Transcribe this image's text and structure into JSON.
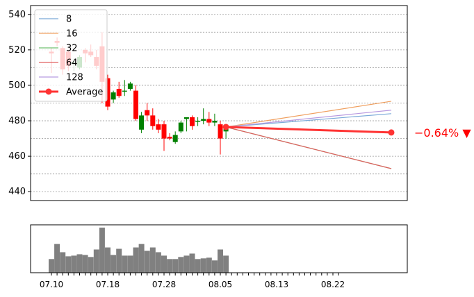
{
  "chart_data": {
    "type": "candlestick",
    "title": "",
    "grid": true,
    "legend_position": "top-left",
    "ylim": [
      435,
      545
    ],
    "yticks": [
      440,
      460,
      480,
      500,
      520,
      540
    ],
    "x_tick_labels": [
      "07.10",
      "07.18",
      "07.28",
      "08.05",
      "08.13",
      "08.22"
    ],
    "change_label": "−0.64% ▼",
    "colors": {
      "up": "#008000",
      "down": "#ff0000",
      "volume": "#808080",
      "average": "#ff3333"
    },
    "candles": [
      {
        "open": 519,
        "high": 521,
        "low": 507,
        "close": 518,
        "volume": 20
      },
      {
        "open": 525,
        "high": 527,
        "low": 522,
        "close": 524,
        "volume": 42
      },
      {
        "open": 521,
        "high": 522,
        "low": 506,
        "close": 509,
        "volume": 30
      },
      {
        "open": 519,
        "high": 520,
        "low": 508,
        "close": 511,
        "volume": 24
      },
      {
        "open": 512,
        "high": 515,
        "low": 508,
        "close": 513,
        "volume": 25
      },
      {
        "open": 510,
        "high": 517,
        "low": 509,
        "close": 516,
        "volume": 27
      },
      {
        "open": 520,
        "high": 521,
        "low": 513,
        "close": 518,
        "volume": 26
      },
      {
        "open": 519,
        "high": 523,
        "low": 516,
        "close": 517,
        "volume": 23
      },
      {
        "open": 516,
        "high": 520,
        "low": 509,
        "close": 511,
        "volume": 34
      },
      {
        "open": 522,
        "high": 530,
        "low": 490,
        "close": 502,
        "volume": 66
      },
      {
        "open": 504,
        "high": 506,
        "low": 486,
        "close": 488,
        "volume": 37
      },
      {
        "open": 492,
        "high": 497,
        "low": 490,
        "close": 496,
        "volume": 26
      },
      {
        "open": 498,
        "high": 502,
        "low": 493,
        "close": 494,
        "volume": 35
      },
      {
        "open": 497,
        "high": 503,
        "low": 494,
        "close": 497,
        "volume": 25
      },
      {
        "open": 498,
        "high": 502,
        "low": 497,
        "close": 501,
        "volume": 25
      },
      {
        "open": 497,
        "high": 500,
        "low": 480,
        "close": 481,
        "volume": 37
      },
      {
        "open": 475,
        "high": 485,
        "low": 473,
        "close": 483,
        "volume": 42
      },
      {
        "open": 486,
        "high": 490,
        "low": 480,
        "close": 483,
        "volume": 32
      },
      {
        "open": 483,
        "high": 487,
        "low": 475,
        "close": 477,
        "volume": 37
      },
      {
        "open": 478,
        "high": 481,
        "low": 473,
        "close": 475,
        "volume": 30
      },
      {
        "open": 478,
        "high": 480,
        "low": 463,
        "close": 470,
        "volume": 25
      },
      {
        "open": 471,
        "high": 473,
        "low": 469,
        "close": 470,
        "volume": 20
      },
      {
        "open": 468,
        "high": 474,
        "low": 467,
        "close": 472,
        "volume": 20
      },
      {
        "open": 474,
        "high": 480,
        "low": 473,
        "close": 479,
        "volume": 23
      },
      {
        "open": 481,
        "high": 482,
        "low": 474,
        "close": 482,
        "volume": 25
      },
      {
        "open": 482,
        "high": 483,
        "low": 475,
        "close": 477,
        "volume": 28
      },
      {
        "open": 480,
        "high": 482,
        "low": 477,
        "close": 480,
        "volume": 20
      },
      {
        "open": 480,
        "high": 487,
        "low": 478,
        "close": 481,
        "volume": 21
      },
      {
        "open": 481,
        "high": 485,
        "low": 477,
        "close": 479,
        "volume": 22
      },
      {
        "open": 479,
        "high": 484,
        "low": 477,
        "close": 480,
        "volume": 18
      },
      {
        "open": 478,
        "high": 480,
        "low": 461,
        "close": 470,
        "volume": 34
      },
      {
        "open": 474,
        "high": 478,
        "low": 470,
        "close": 477,
        "volume": 25
      }
    ],
    "forecast": {
      "series": [
        {
          "name": "8",
          "color": "#7aa9d8",
          "end": 484
        },
        {
          "name": "16",
          "color": "#f0a060",
          "end": 491
        },
        {
          "name": "32",
          "color": "#70c070",
          "end": 453
        },
        {
          "name": "64",
          "color": "#e06060",
          "end": 453
        },
        {
          "name": "128",
          "color": "#b89ae0",
          "end": 486
        }
      ],
      "average": {
        "name": "Average",
        "start": 476.5,
        "end": 473.4
      }
    }
  }
}
